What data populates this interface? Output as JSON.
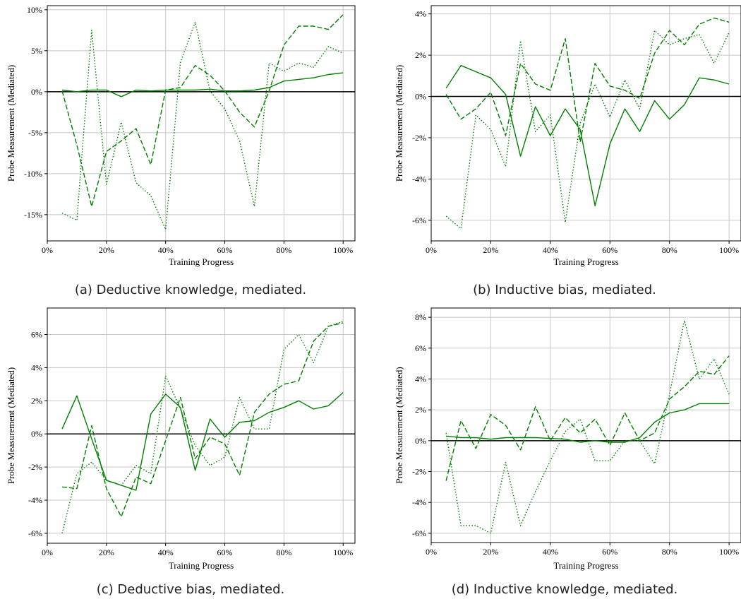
{
  "captions": [
    "(a) Deductive knowledge, mediated.",
    "(b) Inductive bias, mediated.",
    "(c) Deductive bias, mediated.",
    "(d) Inductive knowledge, mediated."
  ],
  "colors": {
    "series": "#008000",
    "grid": "#c8c8c8",
    "zero_line": "#000000"
  },
  "chart_data": [
    {
      "type": "line",
      "xlabel": "Training Progress",
      "ylabel": "Probe Measurement (Mediated)",
      "x_ticks": [
        "0%",
        "20%",
        "40%",
        "60%",
        "80%",
        "100%"
      ],
      "y_ticks": [
        "-15%",
        "-10%",
        "-5%",
        "0%",
        "5%",
        "10%"
      ],
      "xlim": [
        0,
        1.04
      ],
      "ylim": [
        -18.2,
        10.5
      ],
      "x": [
        0.05,
        0.1,
        0.15,
        0.2,
        0.25,
        0.3,
        0.35,
        0.4,
        0.45,
        0.5,
        0.55,
        0.6,
        0.65,
        0.7,
        0.75,
        0.8,
        0.85,
        0.9,
        0.95,
        1.0
      ],
      "series": [
        {
          "style": "solid",
          "values": [
            0.2,
            0.0,
            0.2,
            0.2,
            -0.6,
            0.2,
            0.1,
            0.2,
            0.2,
            0.2,
            0.3,
            0.1,
            0.1,
            0.2,
            0.5,
            1.3,
            1.5,
            1.7,
            2.1,
            2.3
          ]
        },
        {
          "style": "dashed",
          "values": [
            0.1,
            -6.5,
            -14.0,
            -7.3,
            -6.0,
            -4.5,
            -8.9,
            0.2,
            0.5,
            3.2,
            2.0,
            0.1,
            -2.5,
            -4.3,
            0.1,
            5.7,
            8.0,
            8.0,
            7.6,
            9.4
          ]
        },
        {
          "style": "dotted",
          "values": [
            -14.8,
            -15.7,
            7.5,
            -11.3,
            -3.7,
            -11.1,
            -12.7,
            -16.8,
            3.6,
            8.5,
            0.1,
            -2.1,
            -6.0,
            -14.0,
            3.5,
            2.5,
            3.5,
            3.0,
            5.5,
            4.7
          ]
        }
      ]
    },
    {
      "type": "line",
      "xlabel": "Training Progress",
      "ylabel": "Probe Measurement (Mediated)",
      "x_ticks": [
        "0%",
        "20%",
        "40%",
        "60%",
        "80%",
        "100%"
      ],
      "y_ticks": [
        "-6%",
        "-4%",
        "-2%",
        "0%",
        "2%",
        "4%"
      ],
      "xlim": [
        0,
        1.04
      ],
      "ylim": [
        -7.0,
        4.4
      ],
      "x": [
        0.05,
        0.1,
        0.15,
        0.2,
        0.25,
        0.3,
        0.35,
        0.4,
        0.45,
        0.5,
        0.55,
        0.6,
        0.65,
        0.7,
        0.75,
        0.8,
        0.85,
        0.9,
        0.95,
        1.0
      ],
      "series": [
        {
          "style": "solid",
          "values": [
            0.4,
            1.5,
            1.2,
            0.9,
            0.1,
            -2.9,
            -0.5,
            -1.9,
            -0.6,
            -1.6,
            -5.3,
            -2.3,
            -0.6,
            -1.7,
            -0.2,
            -1.1,
            -0.4,
            0.9,
            0.8,
            0.6
          ]
        },
        {
          "style": "dashed",
          "values": [
            0.1,
            -1.1,
            -0.6,
            0.2,
            -1.9,
            1.6,
            0.6,
            0.3,
            2.8,
            -2.2,
            1.6,
            0.5,
            0.3,
            -0.1,
            2.1,
            3.2,
            2.5,
            3.5,
            3.8,
            3.6
          ]
        },
        {
          "style": "dotted",
          "values": [
            -5.8,
            -6.4,
            -0.9,
            -1.6,
            -3.4,
            2.7,
            -1.7,
            -0.9,
            -6.1,
            -1.3,
            0.6,
            -1.0,
            0.8,
            -0.6,
            3.2,
            2.5,
            2.8,
            3.0,
            1.6,
            3.1
          ]
        }
      ]
    },
    {
      "type": "line",
      "xlabel": "Training Progress",
      "ylabel": "Probe Measurement (Mediated)",
      "x_ticks": [
        "0%",
        "20%",
        "40%",
        "60%",
        "80%",
        "100%"
      ],
      "y_ticks": [
        "-6%",
        "-4%",
        "-2%",
        "0%",
        "2%",
        "4%",
        "6%"
      ],
      "xlim": [
        0,
        1.04
      ],
      "ylim": [
        -6.6,
        7.6
      ],
      "x": [
        0.05,
        0.1,
        0.15,
        0.2,
        0.25,
        0.3,
        0.35,
        0.4,
        0.45,
        0.5,
        0.55,
        0.6,
        0.65,
        0.7,
        0.75,
        0.8,
        0.85,
        0.9,
        0.95,
        1.0
      ],
      "series": [
        {
          "style": "solid",
          "values": [
            0.3,
            2.3,
            -0.3,
            -2.8,
            -3.1,
            -3.4,
            1.2,
            2.4,
            1.6,
            -2.2,
            0.9,
            -0.2,
            0.7,
            0.8,
            1.3,
            1.6,
            2.0,
            1.5,
            1.7,
            2.5
          ]
        },
        {
          "style": "dashed",
          "values": [
            -3.2,
            -3.3,
            0.5,
            -3.3,
            -5.0,
            -2.6,
            -3.0,
            -0.4,
            2.2,
            -1.5,
            -0.2,
            -0.6,
            -2.5,
            1.3,
            2.4,
            3.0,
            3.2,
            5.6,
            6.5,
            6.7
          ]
        },
        {
          "style": "dotted",
          "values": [
            -6.0,
            -2.4,
            -1.7,
            -2.8,
            -3.1,
            -1.9,
            -2.4,
            3.5,
            1.5,
            -0.7,
            -1.9,
            -1.4,
            2.2,
            0.3,
            0.3,
            5.1,
            6.0,
            4.3,
            6.5,
            6.8
          ]
        }
      ]
    },
    {
      "type": "line",
      "xlabel": "Training Progress",
      "ylabel": "Probe Measurement (Mediated)",
      "x_ticks": [
        "0%",
        "20%",
        "40%",
        "60%",
        "80%",
        "100%"
      ],
      "y_ticks": [
        "-6%",
        "-4%",
        "-2%",
        "0%",
        "2%",
        "4%",
        "6%",
        "8%"
      ],
      "xlim": [
        0,
        1.04
      ],
      "ylim": [
        -6.6,
        8.6
      ],
      "x": [
        0.05,
        0.1,
        0.15,
        0.2,
        0.25,
        0.3,
        0.35,
        0.4,
        0.45,
        0.5,
        0.55,
        0.6,
        0.65,
        0.7,
        0.75,
        0.8,
        0.85,
        0.9,
        0.95,
        1.0
      ],
      "series": [
        {
          "style": "solid",
          "values": [
            0.3,
            0.2,
            0.2,
            0.1,
            0.2,
            0.2,
            0.2,
            0.15,
            0.1,
            -0.1,
            0.0,
            -0.1,
            -0.1,
            0.2,
            1.2,
            1.8,
            2.0,
            2.4,
            2.4,
            2.4
          ]
        },
        {
          "style": "dashed",
          "values": [
            -2.6,
            1.3,
            -0.5,
            1.7,
            1.0,
            -0.6,
            2.2,
            0.0,
            1.5,
            0.5,
            1.4,
            -0.3,
            1.8,
            0.0,
            0.5,
            2.7,
            3.5,
            4.5,
            4.3,
            5.5
          ]
        },
        {
          "style": "dotted",
          "values": [
            0.5,
            -5.5,
            -5.5,
            -6.0,
            -1.4,
            -5.5,
            -3.3,
            -1.3,
            0.6,
            1.4,
            -1.3,
            -1.3,
            0.0,
            0.0,
            -1.5,
            3.0,
            7.8,
            4.0,
            5.3,
            3.0
          ]
        }
      ]
    }
  ]
}
